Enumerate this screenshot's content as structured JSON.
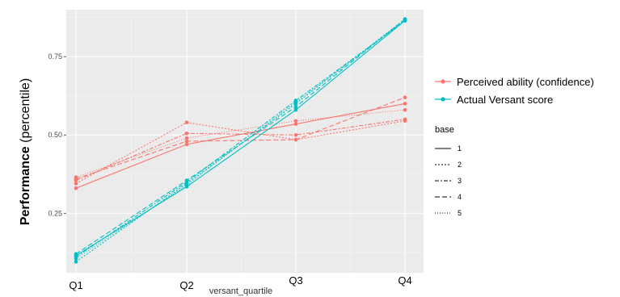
{
  "chart_data": {
    "type": "line",
    "title": "",
    "xlabel": "versant_quartile",
    "ylabel_bold": "Performance",
    "ylabel_rest": " (percentile)",
    "categories": [
      "Q1",
      "Q2",
      "Q3",
      "Q4"
    ],
    "ylim": [
      0.06,
      0.9
    ],
    "yticks": [
      0.25,
      0.5,
      0.75
    ],
    "ytick_labels": [
      "0.25",
      "0.50",
      "0.75"
    ],
    "grid": true,
    "legend_placement": "right",
    "legend_color": {
      "items": [
        {
          "label": "Perceived ability (confidence)",
          "color": "#F8766D"
        },
        {
          "label": "Actual Versant score",
          "color": "#00BFC4"
        }
      ]
    },
    "legend_linetype": {
      "title": "base",
      "items": [
        {
          "label": "1",
          "dash": "solid"
        },
        {
          "label": "2",
          "dash": "dotted"
        },
        {
          "label": "3",
          "dash": "dashdot"
        },
        {
          "label": "4",
          "dash": "dashed"
        },
        {
          "label": "5",
          "dash": "finedot"
        }
      ]
    },
    "series": [
      {
        "group": "Perceived ability (confidence)",
        "base": "1",
        "color": "#F8766D",
        "values": [
          0.33,
          0.47,
          0.535,
          0.6
        ]
      },
      {
        "group": "Perceived ability (confidence)",
        "base": "2",
        "color": "#F8766D",
        "values": [
          0.345,
          0.54,
          0.485,
          0.545
        ]
      },
      {
        "group": "Perceived ability (confidence)",
        "base": "3",
        "color": "#F8766D",
        "values": [
          0.355,
          0.505,
          0.5,
          0.55
        ]
      },
      {
        "group": "Perceived ability (confidence)",
        "base": "4",
        "color": "#F8766D",
        "values": [
          0.36,
          0.48,
          0.485,
          0.62
        ]
      },
      {
        "group": "Perceived ability (confidence)",
        "base": "5",
        "color": "#F8766D",
        "values": [
          0.365,
          0.49,
          0.545,
          0.58
        ]
      },
      {
        "group": "Actual Versant score",
        "base": "1",
        "color": "#00BFC4",
        "values": [
          0.115,
          0.335,
          0.58,
          0.865
        ]
      },
      {
        "group": "Actual Versant score",
        "base": "2",
        "color": "#00BFC4",
        "values": [
          0.095,
          0.345,
          0.6,
          0.87
        ]
      },
      {
        "group": "Actual Versant score",
        "base": "3",
        "color": "#00BFC4",
        "values": [
          0.11,
          0.35,
          0.61,
          0.865
        ]
      },
      {
        "group": "Actual Versant score",
        "base": "4",
        "color": "#00BFC4",
        "values": [
          0.12,
          0.355,
          0.59,
          0.87
        ]
      },
      {
        "group": "Actual Versant score",
        "base": "5",
        "color": "#00BFC4",
        "values": [
          0.105,
          0.34,
          0.605,
          0.865
        ]
      }
    ]
  }
}
